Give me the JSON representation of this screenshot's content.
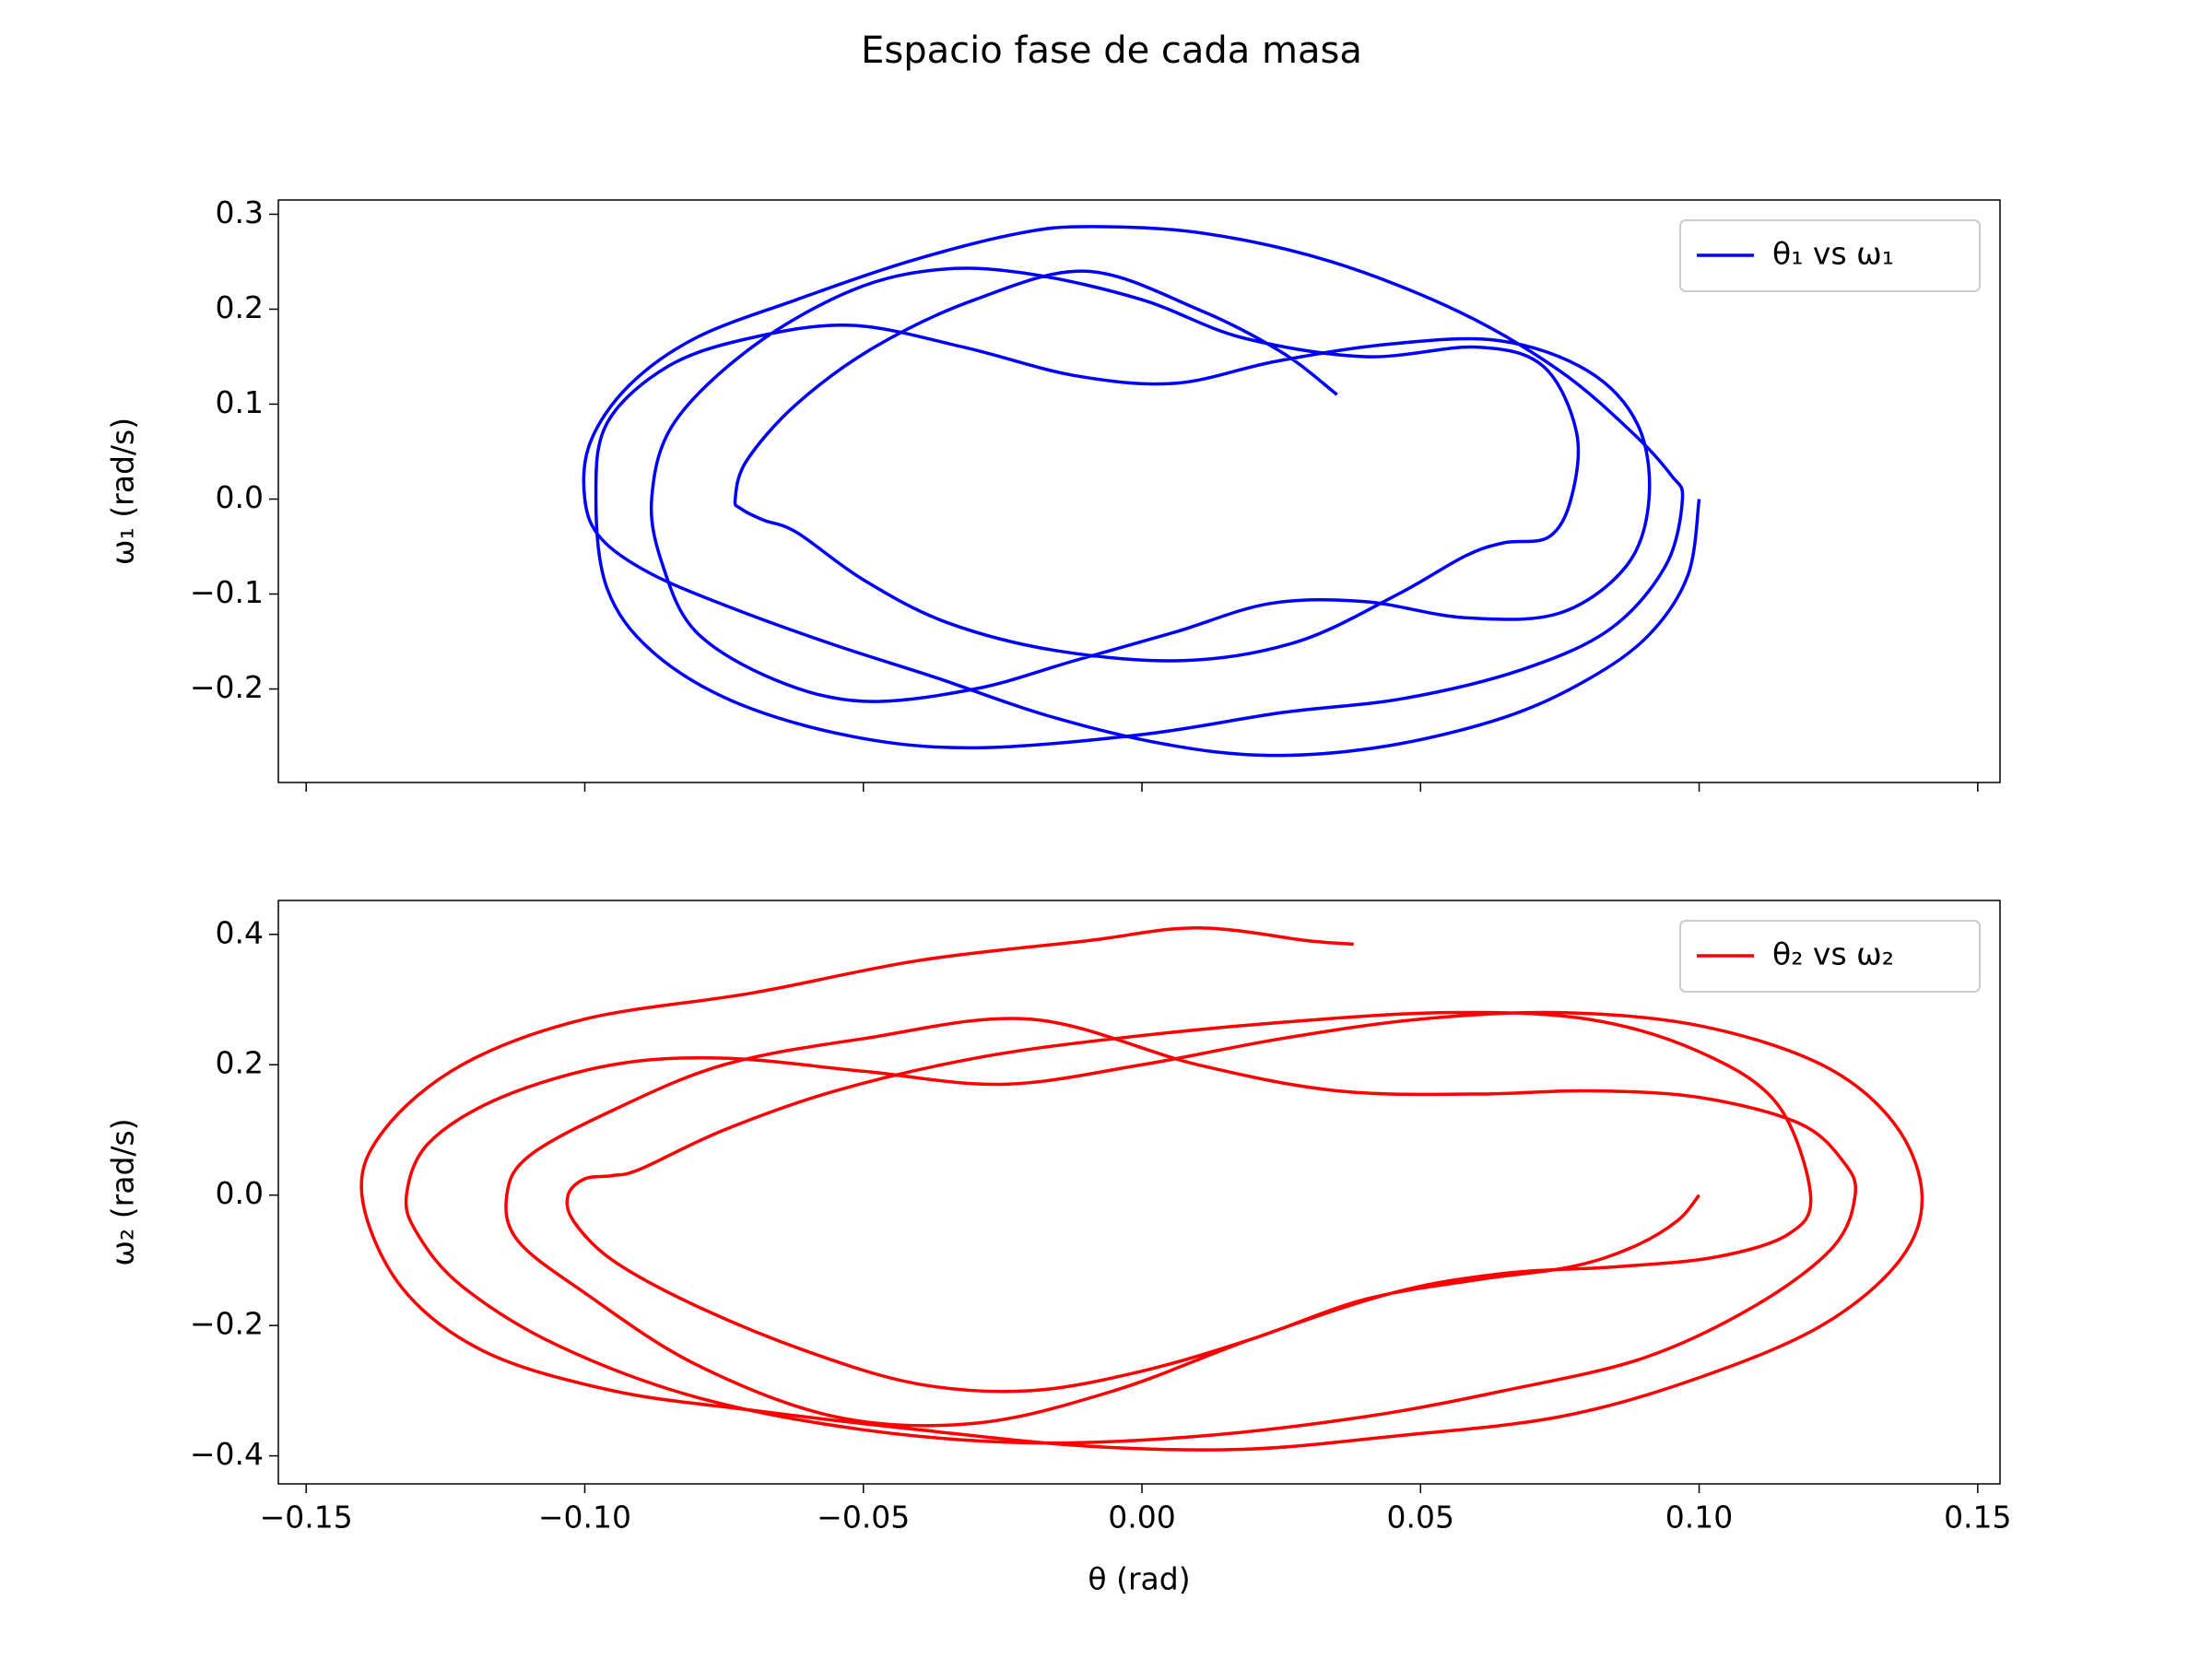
{
  "title": "Espacio fase de cada masa",
  "chart_data": [
    {
      "type": "line",
      "ylabel": "ω₁ (rad/s)",
      "legend": "upper right",
      "show_xticklabels": false,
      "xlim": [
        -0.155,
        0.154
      ],
      "ylim": [
        -0.2985,
        0.315
      ],
      "xticks": [
        -0.15,
        -0.1,
        -0.05,
        0,
        0.05,
        0.1,
        0.15
      ],
      "yticks": [
        0.3,
        0.2,
        0.1,
        {
          "value": 0,
          "label": "0.0"
        },
        {
          "value": -0.1,
          "label": "−0.1"
        },
        {
          "value": -0.2,
          "label": "−0.2"
        }
      ],
      "x": [
        0.1,
        0.098,
        0.091,
        0.08,
        0.065,
        0.044,
        0.023,
        0.004,
        -0.017,
        -0.037,
        -0.055,
        -0.073,
        -0.088,
        -0.097,
        -0.1,
        -0.099,
        -0.092,
        -0.08,
        -0.062,
        -0.042,
        -0.022,
        -0.009,
        0.011,
        0.034,
        0.057,
        0.075,
        0.088,
        0.095,
        0.097,
        0.094,
        0.084,
        0.068,
        0.047,
        0.025,
        0.0,
        -0.03,
        -0.052,
        -0.073,
        -0.088,
        -0.096,
        -0.098,
        -0.096,
        -0.085,
        -0.07,
        -0.052,
        -0.032,
        -0.012,
        0.006,
        0.024,
        0.044,
        0.064,
        0.08,
        0.089,
        0.091,
        0.087,
        0.075,
        0.058,
        0.04,
        0.023,
        0.006,
        -0.012,
        -0.03,
        -0.05,
        -0.066,
        -0.08,
        -0.086,
        -0.088,
        -0.084,
        -0.07,
        -0.052,
        -0.036,
        -0.02,
        0.0,
        0.018,
        0.04,
        0.06,
        0.072,
        0.078,
        0.077,
        0.073,
        0.065,
        0.058,
        0.046,
        0.028,
        0.008,
        -0.015,
        -0.035,
        -0.05,
        -0.062,
        -0.068,
        -0.072,
        -0.073,
        -0.071,
        -0.062,
        -0.048,
        -0.03,
        -0.01,
        0.01,
        0.025,
        0.035
      ],
      "series": [
        {
          "name": "θ₁ vs ω₁",
          "color": "#0000ff",
          "values": [
            0,
            -0.08,
            -0.143,
            -0.19,
            -0.23,
            -0.26,
            -0.27,
            -0.258,
            -0.228,
            -0.188,
            -0.154,
            -0.116,
            -0.079,
            -0.042,
            0,
            0.06,
            0.12,
            0.17,
            0.21,
            0.25,
            0.28,
            0.287,
            0.28,
            0.25,
            0.197,
            0.135,
            0.07,
            0.025,
            0,
            -0.07,
            -0.137,
            -0.18,
            -0.21,
            -0.225,
            -0.248,
            -0.262,
            -0.25,
            -0.214,
            -0.16,
            -0.094,
            0,
            0.08,
            0.14,
            0.17,
            0.183,
            0.16,
            0.13,
            0.122,
            0.145,
            0.163,
            0.167,
            0.135,
            0.078,
            0,
            -0.07,
            -0.12,
            -0.125,
            -0.108,
            -0.11,
            -0.14,
            -0.17,
            -0.2,
            -0.213,
            -0.19,
            -0.14,
            -0.07,
            0,
            0.08,
            0.16,
            0.22,
            0.242,
            0.237,
            0.21,
            0.17,
            0.15,
            0.16,
            0.14,
            0.07,
            0,
            -0.04,
            -0.046,
            -0.06,
            -0.1,
            -0.15,
            -0.17,
            -0.16,
            -0.13,
            -0.085,
            -0.035,
            -0.022,
            -0.01,
            0,
            0.04,
            0.1,
            0.16,
            0.21,
            0.24,
            0.2,
            0.155,
            0.11
          ]
        }
      ]
    },
    {
      "type": "line",
      "ylabel": "ω₂ (rad/s)",
      "xlabel": "θ (rad)",
      "legend": "upper right",
      "show_xticklabels": true,
      "xlim": [
        -0.155,
        0.154
      ],
      "ylim": [
        -0.443,
        0.452
      ],
      "xticks": [
        {
          "value": -0.15,
          "label": "−0.15"
        },
        {
          "value": -0.1,
          "label": "−0.10"
        },
        {
          "value": -0.05,
          "label": "−0.05"
        },
        {
          "value": 0,
          "label": "0.00"
        },
        {
          "value": 0.05,
          "label": "0.05"
        },
        {
          "value": 0.1,
          "label": "0.10"
        },
        {
          "value": 0.15,
          "label": "0.15"
        }
      ],
      "yticks": [
        0.4,
        0.2,
        {
          "value": 0,
          "label": "0.0"
        },
        {
          "value": -0.2,
          "label": "−0.2"
        },
        {
          "value": -0.4,
          "label": "−0.4"
        }
      ],
      "x": [
        0.1,
        0.096,
        0.088,
        0.077,
        0.06,
        0.04,
        0.02,
        0.0,
        -0.02,
        -0.04,
        -0.06,
        -0.08,
        -0.095,
        -0.102,
        -0.103,
        -0.1,
        -0.095,
        -0.09,
        -0.075,
        -0.055,
        -0.03,
        -0.005,
        0.025,
        0.055,
        0.08,
        0.1,
        0.114,
        0.12,
        0.116,
        0.103,
        0.085,
        0.065,
        0.045,
        0.02,
        -0.005,
        -0.03,
        -0.055,
        -0.08,
        -0.1,
        -0.112,
        -0.114,
        -0.11,
        -0.095,
        -0.075,
        -0.05,
        -0.02,
        0.01,
        0.035,
        0.06,
        0.08,
        0.1,
        0.118,
        0.126,
        0.128,
        0.124,
        0.11,
        0.09,
        0.065,
        0.04,
        0.01,
        -0.02,
        -0.05,
        -0.08,
        -0.105,
        -0.122,
        -0.13,
        -0.132,
        -0.128,
        -0.115,
        -0.095,
        -0.075,
        -0.05,
        -0.025,
        0.0,
        0.025,
        0.05,
        0.075,
        0.1,
        0.122,
        0.135,
        0.14,
        0.136,
        0.122,
        0.1,
        0.075,
        0.045,
        0.018,
        -0.01,
        -0.04,
        -0.07,
        -0.095,
        -0.118,
        -0.133,
        -0.14,
        -0.136,
        -0.122,
        -0.1,
        -0.07,
        -0.04,
        -0.01,
        0.01,
        0.03,
        0.038
      ],
      "series": [
        {
          "name": "θ₂ vs ω₂",
          "color": "#ff0000",
          "values": [
            0,
            -0.04,
            -0.08,
            -0.11,
            -0.13,
            -0.16,
            -0.22,
            -0.27,
            -0.3,
            -0.29,
            -0.24,
            -0.17,
            -0.1,
            -0.04,
            0,
            0.025,
            0.03,
            0.04,
            0.1,
            0.16,
            0.21,
            0.24,
            0.265,
            0.28,
            0.27,
            0.22,
            0.14,
            0,
            -0.06,
            -0.095,
            -0.11,
            -0.12,
            -0.15,
            -0.22,
            -0.3,
            -0.35,
            -0.34,
            -0.26,
            -0.15,
            -0.07,
            0,
            0.06,
            0.13,
            0.2,
            0.24,
            0.27,
            0.2,
            0.16,
            0.155,
            0.16,
            0.15,
            0.11,
            0.05,
            0,
            -0.08,
            -0.17,
            -0.25,
            -0.3,
            -0.34,
            -0.37,
            -0.38,
            -0.36,
            -0.31,
            -0.23,
            -0.14,
            -0.06,
            0,
            0.08,
            0.15,
            0.2,
            0.21,
            0.19,
            0.17,
            0.2,
            0.24,
            0.27,
            0.28,
            0.26,
            0.2,
            0.11,
            0,
            -0.1,
            -0.2,
            -0.28,
            -0.34,
            -0.37,
            -0.39,
            -0.385,
            -0.36,
            -0.33,
            -0.3,
            -0.24,
            -0.14,
            0,
            0.1,
            0.2,
            0.27,
            0.31,
            0.36,
            0.39,
            0.41,
            0.39,
            0.385
          ]
        }
      ]
    }
  ]
}
